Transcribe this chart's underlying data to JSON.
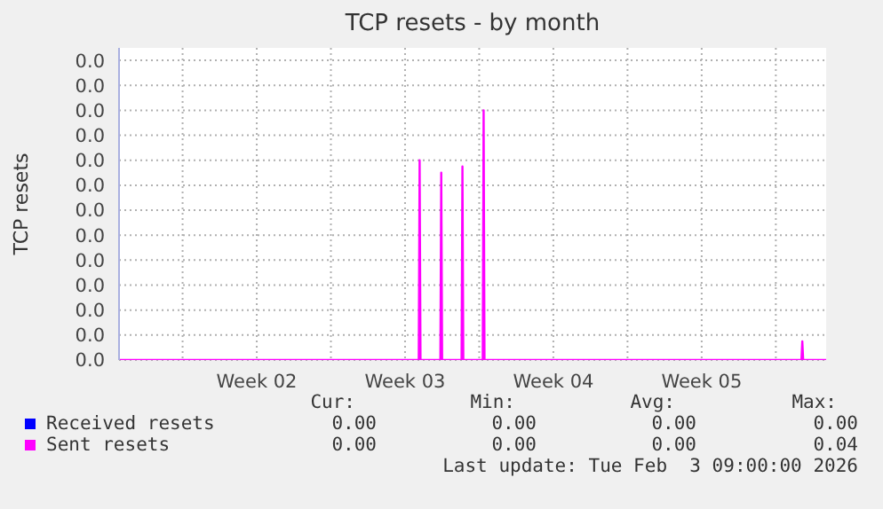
{
  "chart_data": {
    "type": "line",
    "title": "TCP resets - by month",
    "ylabel": "TCP resets",
    "xlim": [
      "2026-01-01",
      "2026-02-03T09:00"
    ],
    "xticks": [
      {
        "value": "2026-01-04",
        "label": null
      },
      {
        "value": "2026-01-07T12:00",
        "label": "Week 02"
      },
      {
        "value": "2026-01-11",
        "label": null
      },
      {
        "value": "2026-01-14T12:00",
        "label": "Week 03"
      },
      {
        "value": "2026-01-18",
        "label": null
      },
      {
        "value": "2026-01-21T12:00",
        "label": "Week 04"
      },
      {
        "value": "2026-01-25",
        "label": null
      },
      {
        "value": "2026-01-28T12:00",
        "label": "Week 05"
      },
      {
        "value": "2026-02-01",
        "label": null
      }
    ],
    "ylim": [
      0,
      0.05
    ],
    "yticks": [
      {
        "value": 0,
        "label": "0.0"
      },
      {
        "value": 0.004,
        "label": "0.0"
      },
      {
        "value": 0.008,
        "label": "0.0"
      },
      {
        "value": 0.012,
        "label": "0.0"
      },
      {
        "value": 0.016,
        "label": "0.0"
      },
      {
        "value": 0.02,
        "label": "0.0"
      },
      {
        "value": 0.024,
        "label": "0.0"
      },
      {
        "value": 0.028,
        "label": "0.0"
      },
      {
        "value": 0.032,
        "label": "0.0"
      },
      {
        "value": 0.036,
        "label": "0.0"
      },
      {
        "value": 0.04,
        "label": "0.0"
      },
      {
        "value": 0.044,
        "label": "0.0"
      },
      {
        "value": 0.048,
        "label": "0.0"
      }
    ],
    "grid": true,
    "legend": "bottom",
    "marker": "none",
    "line_style": "solid",
    "series": [
      {
        "name": "Received resets",
        "color": "#0000ff"
      },
      {
        "name": "Sent resets",
        "color": "#ff00ff",
        "x": [
          "2026-01-01",
          "2026-01-15T03:30",
          "2026-01-15T04:30",
          "2026-01-15T05:30",
          "2026-01-16T04:00",
          "2026-01-16T05:00",
          "2026-01-16T06:00",
          "2026-01-17T04:00",
          "2026-01-17T05:00",
          "2026-01-17T06:00",
          "2026-01-18T04:00",
          "2026-01-18T05:00",
          "2026-01-18T06:00",
          "2026-02-02T05:00",
          "2026-02-02T06:00",
          "2026-02-02T07:00",
          "2026-02-03T09:00"
        ],
        "values": [
          0,
          0,
          0.032,
          0,
          0,
          0.03,
          0,
          0,
          0.031,
          0,
          0,
          0.04,
          0,
          0,
          0.003,
          0,
          0
        ]
      }
    ],
    "annotations": [
      "Cur:",
      "Min:",
      "Avg:",
      "Max:",
      "0.00",
      "0.00",
      "0.00",
      "0.00",
      "0.00",
      "0.00",
      "0.00",
      "0.04",
      "Last update: Tue Feb  3 09:00:00 2026"
    ]
  }
}
